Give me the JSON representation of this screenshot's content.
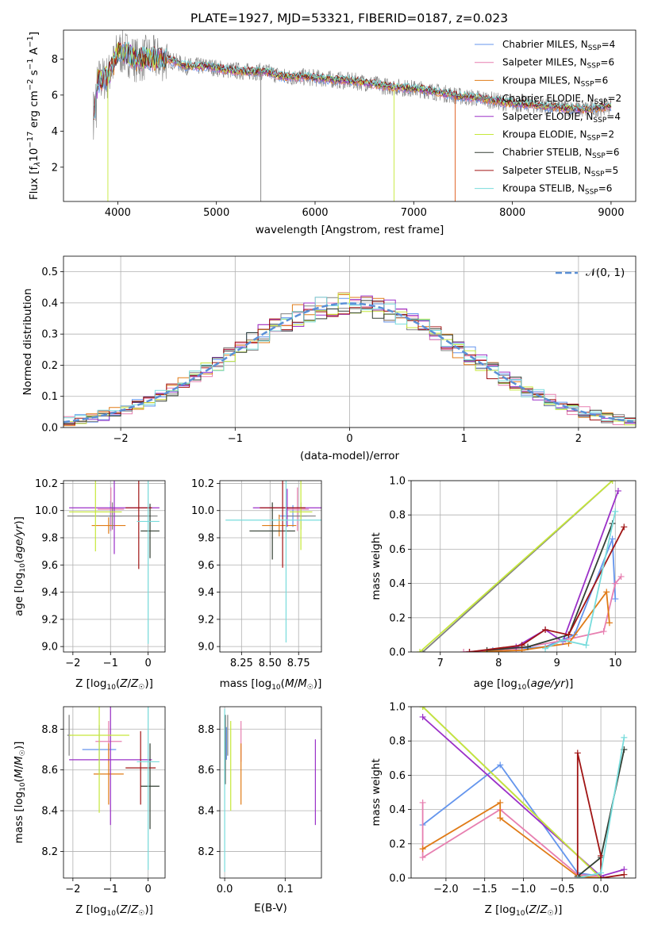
{
  "figure_title": "PLATE=1927, MJD=53321, FIBERID=0187, z=0.023",
  "colors": {
    "Chabrier MILES": "#6495ed",
    "Salpeter MILES": "#e77fb0",
    "Kroupa MILES": "#e07b17",
    "Chabrier ELODIE": "#808080",
    "Salpeter ELODIE": "#9b30c8",
    "Kroupa ELODIE": "#c6e83a",
    "Chabrier STELIB": "#333f33",
    "Salpeter STELIB": "#a01414",
    "Kroupa STELIB": "#78dcdc"
  },
  "chart_data": [
    {
      "id": "spectrum",
      "type": "line",
      "title": "PLATE=1927, MJD=53321, FIBERID=0187, z=0.023",
      "xlabel": "wavelength [Angstrom, rest frame]",
      "ylabel": "Flux [f_λ10^-17 erg cm^-2 s^-1 A^-1]",
      "xlim": [
        3450,
        9250
      ],
      "ylim": [
        0.1,
        9.6
      ],
      "xticks": [
        "4000",
        "5000",
        "6000",
        "7000",
        "8000",
        "9000"
      ],
      "yticks": [
        "2",
        "4",
        "6",
        "8"
      ],
      "legend_position": "top-right",
      "legend": [
        {
          "name": "Chabrier MILES",
          "nssp": "4"
        },
        {
          "name": "Salpeter MILES",
          "nssp": "6"
        },
        {
          "name": "Kroupa MILES",
          "nssp": "6"
        },
        {
          "name": "Chabrier ELODIE",
          "nssp": "2"
        },
        {
          "name": "Salpeter ELODIE",
          "nssp": "4"
        },
        {
          "name": "Kroupa ELODIE",
          "nssp": "2"
        },
        {
          "name": "Chabrier STELIB",
          "nssp": "6"
        },
        {
          "name": "Salpeter STELIB",
          "nssp": "5"
        },
        {
          "name": "Kroupa STELIB",
          "nssp": "6"
        }
      ],
      "series_envelope": {
        "x": [
          3750,
          3800,
          3900,
          3950,
          4000,
          4100,
          4200,
          4300,
          4400,
          4500,
          4700,
          4900,
          5100,
          5300,
          5500,
          5700,
          5900,
          6100,
          6300,
          6500,
          6700,
          6900,
          7100,
          7300,
          7500,
          7700,
          7900,
          8100,
          8300,
          8500,
          8700,
          8900,
          9000
        ],
        "y": [
          4.5,
          6.8,
          7.0,
          7.6,
          8.4,
          8.3,
          7.9,
          8.1,
          8.0,
          8.0,
          7.6,
          7.6,
          7.4,
          7.3,
          7.3,
          7.0,
          7.0,
          6.9,
          6.8,
          6.7,
          6.5,
          6.4,
          6.3,
          6.1,
          5.9,
          5.8,
          5.6,
          5.5,
          5.4,
          5.3,
          5.2,
          5.3,
          5.4
        ]
      }
    },
    {
      "id": "residuals",
      "type": "bar",
      "xlabel": "(data-model)/error",
      "ylabel": "Normed distribution",
      "xlim": [
        -2.5,
        2.5
      ],
      "ylim": [
        0,
        0.55
      ],
      "xticks": [
        "−2",
        "−1",
        "0",
        "1",
        "2"
      ],
      "yticks": [
        "0.0",
        "0.1",
        "0.2",
        "0.3",
        "0.4",
        "0.5"
      ],
      "legend_position": "top-right",
      "legend": [
        "𝒩(0, 1)"
      ],
      "bin_width": 0.1,
      "bins_centers_from": -2.45,
      "reference_curve": "gaussian N(0,1)"
    },
    {
      "id": "age_vs_Z",
      "type": "scatter",
      "xlabel": "Z [log10(Z/Z☉)]",
      "ylabel": "age [log10(age/yr)]",
      "xlim": [
        -2.25,
        0.45
      ],
      "ylim": [
        8.96,
        10.22
      ],
      "xticks": [
        "−2",
        "−1",
        "0"
      ],
      "yticks": [
        "9.0",
        "9.2",
        "9.4",
        "9.6",
        "9.8",
        "10.0",
        "10.2"
      ],
      "series": [
        {
          "name": "Chabrier MILES",
          "x": -1.0,
          "xerr": 0.3,
          "y": 9.96,
          "yerr": 0.11
        },
        {
          "name": "Salpeter MILES",
          "x": -0.99,
          "xerr": 0.35,
          "y": 10.01,
          "yerr": 0.16
        },
        {
          "name": "Kroupa MILES",
          "x": -1.05,
          "xerr": 0.45,
          "y": 9.89,
          "yerr": 0.06
        },
        {
          "name": "Chabrier ELODIE",
          "x": -0.95,
          "xerr": 1.2,
          "y": 9.96,
          "yerr": 0.1
        },
        {
          "name": "Salpeter ELODIE",
          "x": -0.9,
          "xerr": 1.2,
          "y": 10.02,
          "yerr": 0.34
        },
        {
          "name": "Kroupa ELODIE",
          "x": -1.4,
          "xerr": 0.7,
          "y": 9.99,
          "yerr": 0.29
        },
        {
          "name": "Chabrier STELIB",
          "x": 0.05,
          "xerr": 0.25,
          "y": 9.85,
          "yerr": 0.2
        },
        {
          "name": "Salpeter STELIB",
          "x": -0.25,
          "xerr": 0.35,
          "y": 10.02,
          "yerr": 0.45
        },
        {
          "name": "Kroupa STELIB",
          "x": 0.0,
          "xerr": 0.3,
          "y": 9.92,
          "yerr": 0.9
        }
      ]
    },
    {
      "id": "age_vs_mass",
      "type": "scatter",
      "xlabel": "mass [log10(M/M☉)]",
      "ylabel": "",
      "xlim": [
        8.06,
        8.95
      ],
      "ylim": [
        8.96,
        10.22
      ],
      "xticks": [
        "8.25",
        "8.50",
        "8.75"
      ],
      "yticks": [
        "9.0",
        "9.2",
        "9.4",
        "9.6",
        "9.8",
        "10.0",
        "10.2"
      ],
      "series": [
        {
          "name": "Chabrier MILES",
          "x": 8.7,
          "xerr": 0.12,
          "y": 9.96,
          "yerr": 0.08
        },
        {
          "name": "Salpeter MILES",
          "x": 8.74,
          "xerr": 0.1,
          "y": 10.01,
          "yerr": 0.16
        },
        {
          "name": "Kroupa MILES",
          "x": 8.58,
          "xerr": 0.15,
          "y": 9.89,
          "yerr": 0.08
        },
        {
          "name": "Chabrier ELODIE",
          "x": 8.77,
          "xerr": 0.13,
          "y": 9.96,
          "yerr": 0.1
        },
        {
          "name": "Salpeter ELODIE",
          "x": 8.65,
          "xerr": 0.3,
          "y": 10.02,
          "yerr": 0.14
        },
        {
          "name": "Kroupa ELODIE",
          "x": 8.77,
          "xerr": 0.1,
          "y": 9.99,
          "yerr": 0.28
        },
        {
          "name": "Chabrier STELIB",
          "x": 8.52,
          "xerr": 0.2,
          "y": 9.85,
          "yerr": 0.21
        },
        {
          "name": "Salpeter STELIB",
          "x": 8.61,
          "xerr": 0.2,
          "y": 10.02,
          "yerr": 0.44
        },
        {
          "name": "Kroupa STELIB",
          "x": 8.64,
          "xerr": 0.53,
          "y": 9.93,
          "yerr": 0.9
        }
      ]
    },
    {
      "id": "weight_vs_age",
      "type": "line",
      "xlabel": "age [log10(age/yr)]",
      "ylabel": "mass weight",
      "xlim": [
        6.5,
        10.35
      ],
      "ylim": [
        0,
        1.0
      ],
      "xticks": [
        "7",
        "8",
        "9",
        "10"
      ],
      "yticks": [
        "0.0",
        "0.2",
        "0.4",
        "0.6",
        "0.8",
        "1.0"
      ],
      "series": [
        {
          "name": "Chabrier MILES",
          "x": [
            7.9,
            8.8,
            9.3,
            9.95,
            10.0
          ],
          "y": [
            0.01,
            0.03,
            0.1,
            0.66,
            0.31
          ]
        },
        {
          "name": "Salpeter MILES",
          "x": [
            7.4,
            8.3,
            9.0,
            9.8,
            10.0,
            10.1
          ],
          "y": [
            0.0,
            0.02,
            0.06,
            0.12,
            0.4,
            0.44
          ]
        },
        {
          "name": "Kroupa MILES",
          "x": [
            7.5,
            8.4,
            9.2,
            9.85,
            9.9
          ],
          "y": [
            0.0,
            0.01,
            0.05,
            0.35,
            0.17
          ]
        },
        {
          "name": "Chabrier ELODIE",
          "x": [
            6.7,
            9.95
          ],
          "y": [
            0.0,
            1.0
          ]
        },
        {
          "name": "Salpeter ELODIE",
          "x": [
            7.5,
            8.3,
            8.8,
            9.1,
            10.05
          ],
          "y": [
            0.0,
            0.03,
            0.13,
            0.06,
            0.94
          ]
        },
        {
          "name": "Kroupa ELODIE",
          "x": [
            6.65,
            9.95
          ],
          "y": [
            0.0,
            1.0
          ]
        },
        {
          "name": "Chabrier STELIB",
          "x": [
            7.8,
            8.5,
            9.2,
            9.95
          ],
          "y": [
            0.01,
            0.03,
            0.1,
            0.75
          ]
        },
        {
          "name": "Salpeter STELIB",
          "x": [
            7.5,
            8.4,
            8.8,
            9.2,
            10.15
          ],
          "y": [
            0.0,
            0.04,
            0.13,
            0.1,
            0.73
          ]
        },
        {
          "name": "Kroupa STELIB",
          "x": [
            8.8,
            9.1,
            9.5,
            10.0
          ],
          "y": [
            0.02,
            0.07,
            0.04,
            0.82
          ]
        }
      ]
    },
    {
      "id": "mass_vs_Z",
      "type": "scatter",
      "xlabel": "Z [log10(Z/Z☉)]",
      "ylabel": "mass [log10(M/M☉)]",
      "xlim": [
        -2.25,
        0.45
      ],
      "ylim": [
        8.07,
        8.91
      ],
      "xticks": [
        "−2",
        "−1",
        "0"
      ],
      "yticks": [
        "8.2",
        "8.4",
        "8.6",
        "8.8"
      ],
      "series": [
        {
          "name": "Chabrier MILES",
          "x": -1.3,
          "xerr": 0.45,
          "y": 8.7,
          "yerr": 0.12
        },
        {
          "name": "Salpeter MILES",
          "x": -1.05,
          "xerr": 0.35,
          "y": 8.74,
          "yerr": 0.1
        },
        {
          "name": "Kroupa MILES",
          "x": -1.05,
          "xerr": 0.4,
          "y": 8.58,
          "yerr": 0.15
        },
        {
          "name": "Chabrier ELODIE",
          "x": -2.1,
          "xerr": 0.05,
          "y": 8.77,
          "yerr": 0.1
        },
        {
          "name": "Salpeter ELODIE",
          "x": -1.0,
          "xerr": 1.1,
          "y": 8.65,
          "yerr": 0.32
        },
        {
          "name": "Kroupa ELODIE",
          "x": -1.3,
          "xerr": 0.8,
          "y": 8.77,
          "yerr": 0.38
        },
        {
          "name": "Chabrier STELIB",
          "x": 0.05,
          "xerr": 0.25,
          "y": 8.52,
          "yerr": 0.21
        },
        {
          "name": "Salpeter STELIB",
          "x": -0.2,
          "xerr": 0.4,
          "y": 8.61,
          "yerr": 0.18
        },
        {
          "name": "Kroupa STELIB",
          "x": 0.0,
          "xerr": 0.3,
          "y": 8.64,
          "yerr": 0.53
        }
      ]
    },
    {
      "id": "mass_vs_ebv",
      "type": "scatter",
      "xlabel": "E(B-V)",
      "ylabel": "",
      "xlim": [
        -0.008,
        0.16
      ],
      "ylim": [
        8.07,
        8.91
      ],
      "xticks": [
        "0.0",
        "0.1"
      ],
      "yticks": [
        "8.2",
        "8.4",
        "8.6",
        "8.8"
      ],
      "series": [
        {
          "name": "Chabrier MILES",
          "x": 0.003,
          "y": 8.73,
          "yerr": 0.08
        },
        {
          "name": "Salpeter MILES",
          "x": 0.027,
          "y": 8.74,
          "yerr": 0.1
        },
        {
          "name": "Kroupa MILES",
          "x": 0.027,
          "y": 8.58,
          "yerr": 0.15
        },
        {
          "name": "Chabrier ELODIE",
          "x": 0.005,
          "y": 8.77,
          "yerr": 0.1
        },
        {
          "name": "Salpeter ELODIE",
          "x": 0.15,
          "y": 8.54,
          "yerr": 0.21
        },
        {
          "name": "Kroupa ELODIE",
          "x": 0.01,
          "y": 8.62,
          "yerr": 0.22
        },
        {
          "name": "Chabrier STELIB",
          "x": 0.001,
          "y": 8.7,
          "yerr": 0.17
        },
        {
          "name": "Salpeter STELIB",
          "x": 0.0,
          "y": 8.8,
          "yerr": 0.06
        },
        {
          "name": "Kroupa STELIB",
          "x": 0.0,
          "y": 8.5,
          "yerr": 0.4
        }
      ]
    },
    {
      "id": "weight_vs_Z",
      "type": "line",
      "xlabel": "Z [log10(Z/Z☉)]",
      "ylabel": "mass weight",
      "xlim": [
        -2.45,
        0.45
      ],
      "ylim": [
        0,
        1.0
      ],
      "xticks": [
        "−2.0",
        "−1.5",
        "−1.0",
        "−0.5",
        "0.0"
      ],
      "yticks": [
        "0.0",
        "0.2",
        "0.4",
        "0.6",
        "0.8",
        "1.0"
      ],
      "series": [
        {
          "name": "Chabrier MILES",
          "x": [
            -2.3,
            -1.3,
            -0.3,
            0.0
          ],
          "y": [
            0.31,
            0.66,
            0.03,
            0.01
          ]
        },
        {
          "name": "Salpeter MILES",
          "x": [
            -2.3,
            -2.3,
            -1.3,
            -0.3,
            0.0
          ],
          "y": [
            0.44,
            0.12,
            0.4,
            0.02,
            0.01
          ]
        },
        {
          "name": "Kroupa MILES",
          "x": [
            -2.3,
            -1.3,
            -1.3,
            -0.3,
            0.0
          ],
          "y": [
            0.17,
            0.44,
            0.35,
            0.01,
            0.0
          ]
        },
        {
          "name": "Chabrier ELODIE",
          "x": [
            -2.3,
            0.0
          ],
          "y": [
            1.0,
            0.0
          ]
        },
        {
          "name": "Salpeter ELODIE",
          "x": [
            -2.3,
            0.0,
            0.3
          ],
          "y": [
            0.94,
            0.01,
            0.05
          ]
        },
        {
          "name": "Kroupa ELODIE",
          "x": [
            -2.3,
            0.0
          ],
          "y": [
            1.0,
            0.0
          ]
        },
        {
          "name": "Chabrier STELIB",
          "x": [
            -0.3,
            0.0,
            0.3
          ],
          "y": [
            0.01,
            0.12,
            0.75
          ]
        },
        {
          "name": "Salpeter STELIB",
          "x": [
            -0.3,
            -0.3,
            0.0,
            0.0,
            0.3
          ],
          "y": [
            0.0,
            0.73,
            0.13,
            0.0,
            0.02
          ]
        },
        {
          "name": "Kroupa STELIB",
          "x": [
            -0.3,
            0.0,
            0.3
          ],
          "y": [
            0.0,
            0.03,
            0.82
          ]
        }
      ]
    }
  ]
}
